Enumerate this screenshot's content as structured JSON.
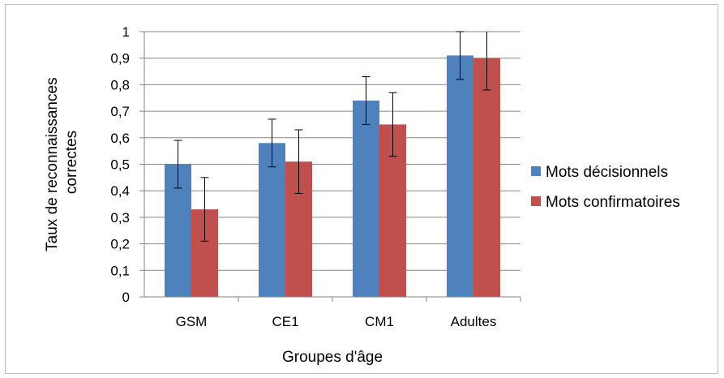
{
  "chart_data": {
    "type": "bar",
    "xlabel": "Groupes d'âge",
    "ylabel_lines": [
      "Taux de reconnaissances",
      "correctes"
    ],
    "categories": [
      "GSM",
      "CE1",
      "CM1",
      "Adultes"
    ],
    "ylim": [
      0,
      1
    ],
    "yticks": [
      "0",
      "0,1",
      "0,2",
      "0,3",
      "0,4",
      "0,5",
      "0,6",
      "0,7",
      "0,8",
      "0,9",
      "1"
    ],
    "grid": true,
    "legend_position": "right",
    "series": [
      {
        "name": "Mots décisionnels",
        "color": "#4f81bd",
        "values": [
          0.5,
          0.58,
          0.74,
          0.91
        ],
        "errors": [
          0.09,
          0.09,
          0.09,
          0.09
        ]
      },
      {
        "name": "Mots confirmatoires",
        "color": "#c0504d",
        "values": [
          0.33,
          0.51,
          0.65,
          0.9
        ],
        "errors": [
          0.12,
          0.12,
          0.12,
          0.12
        ]
      }
    ]
  }
}
